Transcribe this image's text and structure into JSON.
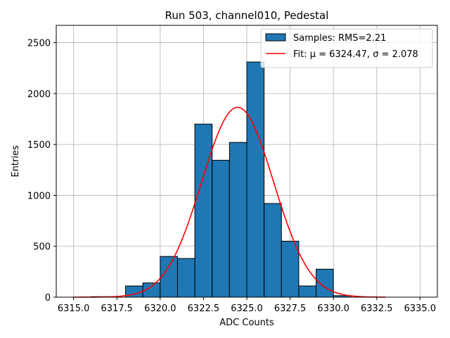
{
  "chart_data": {
    "type": "bar",
    "title": "Run 503, channel010, Pedestal",
    "xlabel": "ADC Counts",
    "ylabel": "Entries",
    "xlim": [
      6314.0,
      6336.0
    ],
    "ylim": [
      0,
      2670
    ],
    "xticks": [
      6315.0,
      6317.5,
      6320.0,
      6322.5,
      6325.0,
      6327.5,
      6330.0,
      6332.5,
      6335.0
    ],
    "xtick_labels": [
      "6315.0",
      "6317.5",
      "6320.0",
      "6322.5",
      "6325.0",
      "6327.5",
      "6330.0",
      "6332.5",
      "6335.0"
    ],
    "yticks": [
      0,
      500,
      1000,
      1500,
      2000,
      2500
    ],
    "ytick_labels": [
      "0",
      "500",
      "1000",
      "1500",
      "2000",
      "2500"
    ],
    "grid": true,
    "legend_position": "top-right",
    "bin_width": 1.0,
    "histogram": {
      "name": "Samples: RMS=2.21",
      "color": "#1f77b4",
      "edge_color": "#000000",
      "bin_centers": [
        6316.5,
        6318.5,
        6319.5,
        6320.5,
        6321.5,
        6322.5,
        6323.5,
        6324.5,
        6325.5,
        6326.5,
        6327.5,
        6328.5,
        6329.5,
        6330.5
      ],
      "values": [
        5,
        110,
        140,
        400,
        380,
        1700,
        1345,
        1520,
        2310,
        920,
        550,
        110,
        275,
        15
      ]
    },
    "fit": {
      "name": "Fit: μ = 6324.47, σ = 2.078",
      "color": "#ff0000",
      "mu": 6324.47,
      "sigma": 2.078,
      "amplitude": 1865,
      "x_range": [
        6315.0,
        6333.0
      ]
    }
  }
}
